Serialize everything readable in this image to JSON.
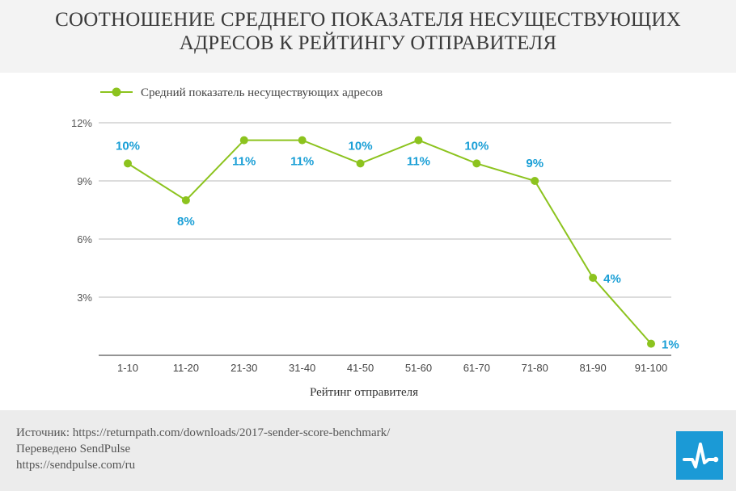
{
  "header": {
    "title_line1": "СООТНОШЕНИЕ СРЕДНЕГО ПОКАЗАТЕЛЯ НЕСУЩЕСТВУЮЩИХ",
    "title_line2": "АДРЕСОВ К РЕЙТИНГУ ОТПРАВИТЕЛЯ"
  },
  "footer": {
    "source": "Источник: https://returnpath.com/downloads/2017-sender-score-benchmark/",
    "translated": "Переведено SendPulse",
    "url": "https://sendpulse.com/ru",
    "logo_icon": "sendpulse-logo-icon"
  },
  "colors": {
    "line": "#8cc31e",
    "label": "#1a9fd6",
    "grid": "#c8c8c8",
    "logo": "#1b9ad6"
  },
  "chart_data": {
    "type": "line",
    "title": "СООТНОШЕНИЕ СРЕДНЕГО ПОКАЗАТЕЛЯ НЕСУЩЕСТВУЮЩИХ АДРЕСОВ К РЕЙТИНГУ ОТПРАВИТЕЛЯ",
    "xlabel": "Рейтинг отправителя",
    "ylabel": "",
    "categories": [
      "1-10",
      "11-20",
      "21-30",
      "31-40",
      "41-50",
      "51-60",
      "61-70",
      "71-80",
      "81-90",
      "91-100"
    ],
    "series": [
      {
        "name": "Средний показатель несуществующих адресов",
        "values": [
          9.9,
          8.0,
          11.1,
          11.1,
          9.9,
          11.1,
          9.9,
          9.0,
          4.0,
          0.6
        ],
        "labels": [
          "10%",
          "8%",
          "11%",
          "11%",
          "10%",
          "11%",
          "10%",
          "9%",
          "4%",
          "1%"
        ],
        "label_pos": [
          "above",
          "below",
          "below",
          "below",
          "above",
          "below",
          "above",
          "above",
          "right",
          "right"
        ]
      }
    ],
    "ylim": [
      0,
      12
    ],
    "yticks": [
      3,
      6,
      9,
      12
    ],
    "ytick_labels": [
      "3%",
      "6%",
      "9%",
      "12%"
    ],
    "grid": true,
    "legend": "top-left"
  }
}
